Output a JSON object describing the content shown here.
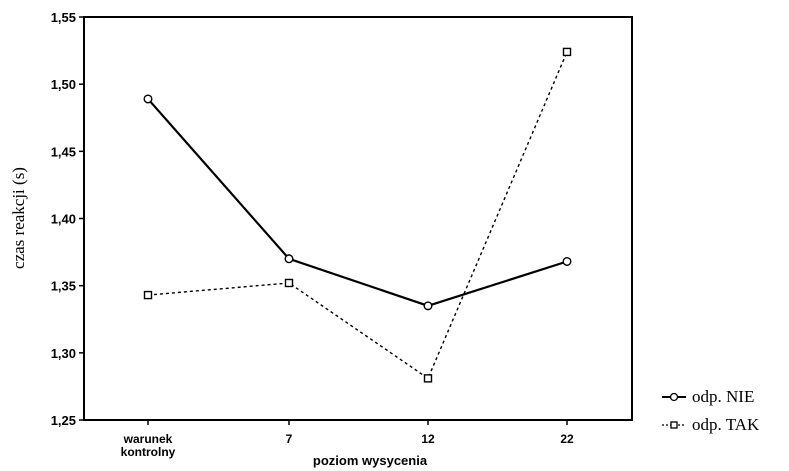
{
  "chart_data": {
    "type": "line",
    "categories": [
      [
        "warunek",
        "kontrolny"
      ],
      [
        "7"
      ],
      [
        "12"
      ],
      [
        "22"
      ]
    ],
    "series": [
      {
        "name": "odp. NIE",
        "values": [
          1.489,
          1.37,
          1.335,
          1.368
        ],
        "color": "#000000",
        "marker": "circle",
        "line": "solid"
      },
      {
        "name": "odp. TAK",
        "values": [
          1.343,
          1.352,
          1.281,
          1.524
        ],
        "color": "#000000",
        "marker": "square",
        "line": "dotted"
      }
    ],
    "yticks": [
      "1,25",
      "1,30",
      "1,35",
      "1,40",
      "1,45",
      "1,50",
      "1,55"
    ],
    "ytick_values": [
      1.25,
      1.3,
      1.35,
      1.4,
      1.45,
      1.5,
      1.55
    ],
    "ylim": [
      1.25,
      1.55
    ],
    "xlabel": "poziom wysycenia",
    "ylabel": "czas reakcji (s)",
    "legend_position": "bottom-right-outside",
    "grid": false
  }
}
